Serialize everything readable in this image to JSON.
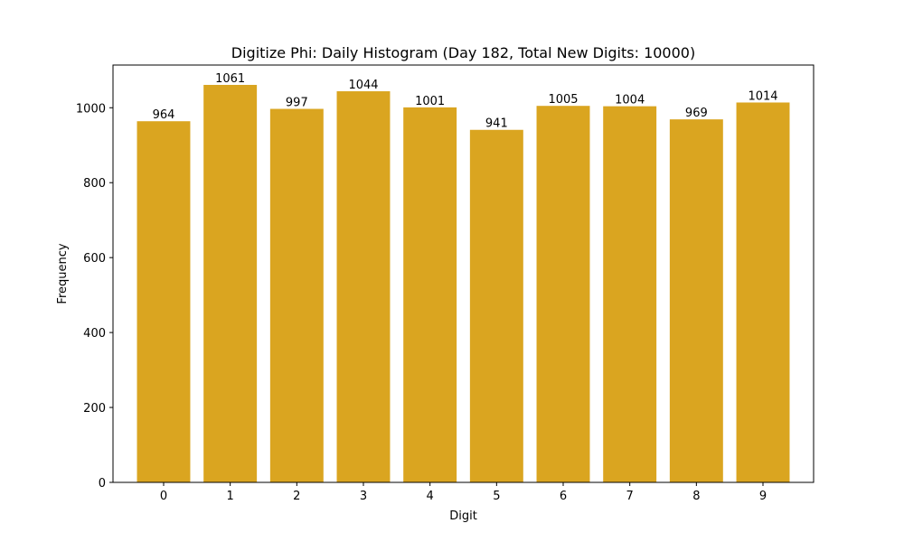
{
  "chart_data": {
    "type": "bar",
    "title": "Digitize Phi: Daily Histogram (Day 182, Total New Digits: 10000)",
    "xlabel": "Digit",
    "ylabel": "Frequency",
    "categories": [
      "0",
      "1",
      "2",
      "3",
      "4",
      "5",
      "6",
      "7",
      "8",
      "9"
    ],
    "values": [
      964,
      1061,
      997,
      1044,
      1001,
      941,
      1005,
      1004,
      969,
      1014
    ],
    "data_labels": [
      "964",
      "1061",
      "997",
      "1044",
      "1001",
      "941",
      "1005",
      "1004",
      "969",
      "1014"
    ],
    "ylim": [
      0,
      1114
    ],
    "yticks": [
      0,
      200,
      400,
      600,
      800,
      1000
    ],
    "ytick_labels": [
      "0",
      "200",
      "400",
      "600",
      "800",
      "1000"
    ],
    "grid": false,
    "legend": null,
    "bar_color": "#DAA520"
  }
}
